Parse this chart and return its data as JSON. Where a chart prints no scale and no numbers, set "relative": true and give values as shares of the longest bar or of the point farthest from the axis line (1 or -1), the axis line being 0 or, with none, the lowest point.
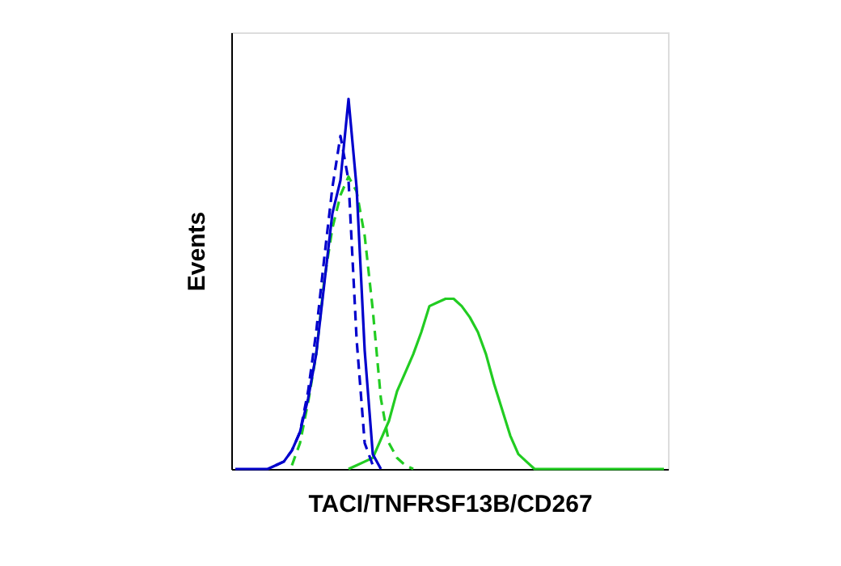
{
  "chart_data": {
    "type": "line",
    "relative": true,
    "xlabel": "TACI/TNFRSF13B/CD267",
    "ylabel": "Events",
    "grid": false,
    "marker": "none",
    "categories": [
      null,
      null,
      null,
      null,
      null,
      null,
      null,
      null,
      null,
      null,
      null,
      null,
      null,
      null,
      null,
      null,
      null,
      null,
      null,
      null,
      null,
      null,
      null,
      null,
      null,
      null,
      null,
      null,
      null,
      null,
      null,
      null,
      null,
      null,
      null,
      null,
      null,
      null,
      null,
      null,
      null,
      null,
      null,
      null,
      null,
      null,
      null,
      null,
      null,
      null,
      null,
      null,
      null,
      null
    ],
    "series": [
      {
        "color": "#22cc22",
        "line_style": "solid",
        "values": [
          null,
          null,
          null,
          null,
          null,
          null,
          null,
          null,
          null,
          null,
          null,
          null,
          null,
          null,
          0,
          0.01,
          0.02,
          0.03,
          0.08,
          0.13,
          0.21,
          0.26,
          0.31,
          0.37,
          0.44,
          0.45,
          0.46,
          0.46,
          0.44,
          0.41,
          0.37,
          0.31,
          0.23,
          0.16,
          0.09,
          0.04,
          0.02,
          0,
          0,
          0,
          0,
          0,
          0,
          0,
          0,
          0,
          0,
          0,
          0,
          0,
          0,
          0,
          0,
          0
        ]
      },
      {
        "color": "#22cc22",
        "line_style": "dashed",
        "values": [
          null,
          null,
          null,
          null,
          null,
          null,
          null,
          0.01,
          0.07,
          0.18,
          0.31,
          0.51,
          0.65,
          0.74,
          0.79,
          0.75,
          0.63,
          0.43,
          0.19,
          0.07,
          0.03,
          0.01,
          0,
          null,
          null,
          null,
          null,
          null,
          null,
          null,
          null,
          null,
          null,
          null,
          null,
          null,
          null,
          null,
          null,
          null,
          null,
          null,
          null,
          null,
          null,
          null,
          null,
          null,
          null,
          null,
          null,
          null,
          null,
          null
        ]
      },
      {
        "color": "#0000cc",
        "line_style": "dashed",
        "values": [
          null,
          null,
          null,
          null,
          null,
          0.01,
          0.02,
          0.05,
          0.1,
          0.21,
          0.37,
          0.57,
          0.76,
          0.9,
          0.78,
          0.35,
          0.07,
          0.01,
          null,
          null,
          null,
          null,
          null,
          null,
          null,
          null,
          null,
          null,
          null,
          null,
          null,
          null,
          null,
          null,
          null,
          null,
          null,
          null,
          null,
          null,
          null,
          null,
          null,
          null,
          null,
          null,
          null,
          null,
          null,
          null,
          null,
          null,
          null,
          null
        ]
      },
      {
        "color": "#0000cc",
        "line_style": "solid",
        "values": [
          0,
          0,
          0,
          0,
          0,
          0.01,
          0.02,
          0.05,
          0.1,
          0.19,
          0.31,
          0.5,
          0.69,
          0.78,
          1.0,
          0.76,
          0.32,
          0.04,
          0,
          null,
          null,
          null,
          null,
          null,
          null,
          null,
          null,
          null,
          null,
          null,
          null,
          null,
          null,
          null,
          null,
          null,
          null,
          null,
          null,
          null,
          null,
          null,
          null,
          null,
          null,
          null,
          null,
          null,
          null,
          null,
          null,
          null,
          null,
          null
        ]
      }
    ]
  }
}
